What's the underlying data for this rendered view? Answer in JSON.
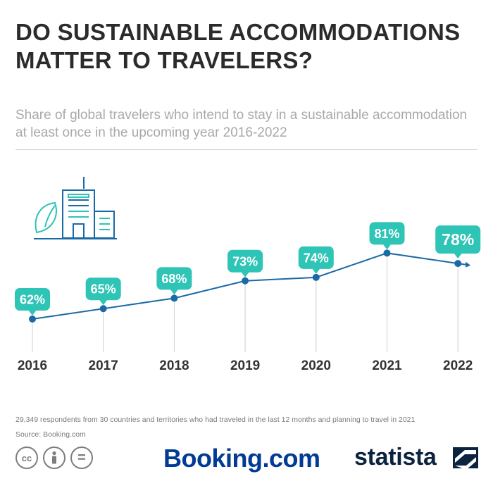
{
  "header": {
    "title": "DO SUSTAINABLE ACCOMMODATIONS MATTER TO TRAVELERS?",
    "subtitle": "Share of global travelers who intend to stay in a sustainable accommodation at least once in the upcoming year 2016-2022"
  },
  "chart_data": {
    "type": "line",
    "title": "DO SUSTAINABLE ACCOMMODATIONS MATTER TO TRAVELERS?",
    "subtitle": "Share of global travelers who intend to stay in a sustainable accommodation at least once in the upcoming year 2016-2022",
    "xlabel": "",
    "ylabel": "",
    "categories": [
      "2016",
      "2017",
      "2018",
      "2019",
      "2020",
      "2021",
      "2022"
    ],
    "values": [
      62,
      65,
      68,
      73,
      74,
      81,
      78
    ],
    "data_labels": [
      "62%",
      "65%",
      "68%",
      "73%",
      "74%",
      "81%",
      "78%"
    ],
    "highlight_last": true,
    "grid": false,
    "legend": "none",
    "colors": {
      "line": "#1b6aa5",
      "label_bubble": "#2ec4b6",
      "label_text": "#ffffff",
      "drop_line": "#cfcfcf",
      "icon": "#1b6aa5",
      "icon_accent": "#2ec4b6"
    }
  },
  "footer": {
    "note": "29,349 respondents from 30 countries and territories who had traveled in the last 12 months and planning to travel in 2021",
    "source": "Source: Booking.com",
    "license_icons": [
      "cc-icon",
      "by-attribution-icon",
      "nd-equal-icon"
    ],
    "cc_text": "cc",
    "nd_text": "=",
    "brand_booking": "Booking.com",
    "brand_statista": "statista"
  }
}
